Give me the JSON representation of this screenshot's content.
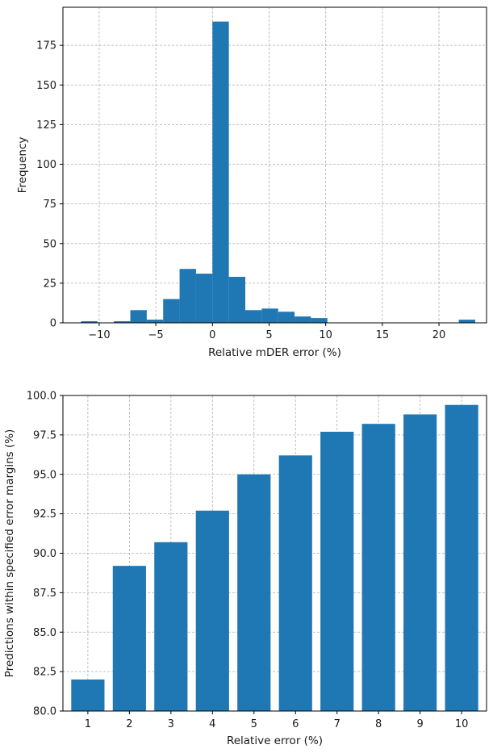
{
  "colors": {
    "bar": "#1f77b4"
  },
  "chart_data": [
    {
      "type": "bar",
      "name": "histogram",
      "title": "",
      "xlabel": "Relative mDER error (%)",
      "ylabel": "Frequency",
      "xlim": [
        -13.2,
        24.2
      ],
      "ylim": [
        0,
        199
      ],
      "xticks": [
        -10,
        -5,
        0,
        5,
        10,
        15,
        20
      ],
      "xtick_labels": [
        "−10",
        "−5",
        "0",
        "5",
        "10",
        "15",
        "20"
      ],
      "yticks": [
        0,
        25,
        50,
        75,
        100,
        125,
        150,
        175
      ],
      "ytick_labels": [
        "0",
        "25",
        "50",
        "75",
        "100",
        "125",
        "150",
        "175"
      ],
      "grid": true,
      "bin_width": 1.45,
      "bins": [
        {
          "left": -11.6,
          "value": 1
        },
        {
          "left": -8.7,
          "value": 1
        },
        {
          "left": -7.25,
          "value": 8
        },
        {
          "left": -5.8,
          "value": 2
        },
        {
          "left": -4.35,
          "value": 15
        },
        {
          "left": -2.9,
          "value": 34
        },
        {
          "left": -1.45,
          "value": 31
        },
        {
          "left": 0.0,
          "value": 190
        },
        {
          "left": 1.45,
          "value": 29
        },
        {
          "left": 2.9,
          "value": 8
        },
        {
          "left": 4.35,
          "value": 9
        },
        {
          "left": 5.8,
          "value": 7
        },
        {
          "left": 7.25,
          "value": 4
        },
        {
          "left": 8.7,
          "value": 3
        },
        {
          "left": 21.75,
          "value": 2
        }
      ]
    },
    {
      "type": "bar",
      "name": "cumulative-accuracy",
      "title": "",
      "xlabel": "Relative error (%)",
      "ylabel": "Predictions within specified error margins (%)",
      "categories": [
        "1",
        "2",
        "3",
        "4",
        "5",
        "6",
        "7",
        "8",
        "9",
        "10"
      ],
      "values": [
        82.0,
        89.2,
        90.7,
        92.7,
        95.0,
        96.2,
        97.7,
        98.2,
        98.8,
        99.4
      ],
      "ylim": [
        80.0,
        100.0
      ],
      "yticks": [
        80.0,
        82.5,
        85.0,
        87.5,
        90.0,
        92.5,
        95.0,
        97.5,
        100.0
      ],
      "ytick_labels": [
        "80.0",
        "82.5",
        "85.0",
        "87.5",
        "90.0",
        "92.5",
        "95.0",
        "97.5",
        "100.0"
      ],
      "grid": true
    }
  ]
}
